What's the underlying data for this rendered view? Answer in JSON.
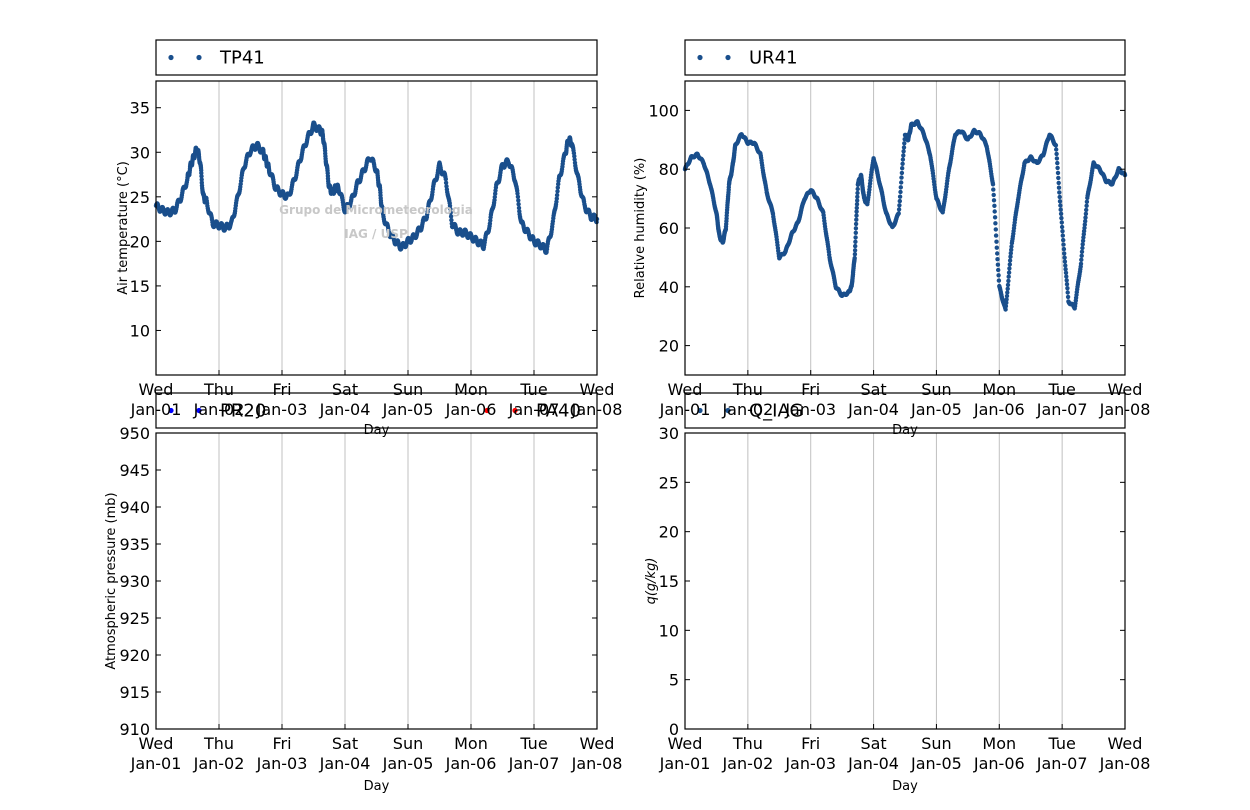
{
  "watermark": {
    "line1": "Grupo de Micrometeorologia",
    "line2": "IAG / USP"
  },
  "colors": {
    "series_blue": "#1a4f8c",
    "pr20": "#0000ff",
    "pa40": "#ff0000",
    "grid": "#c0c0c0"
  },
  "chart_data": [
    {
      "type": "scatter",
      "id": "temp",
      "xlabel": "Day",
      "ylabel": "Air temperature (°C)",
      "xlim": [
        0,
        7
      ],
      "ylim": [
        5,
        38
      ],
      "yticks": [
        10,
        15,
        20,
        25,
        30,
        35
      ],
      "xticks": [
        {
          "x": 0,
          "l1": "Wed",
          "l2": "Jan-01"
        },
        {
          "x": 1,
          "l1": "Thu",
          "l2": "Jan-02"
        },
        {
          "x": 2,
          "l1": "Fri",
          "l2": "Jan-03"
        },
        {
          "x": 3,
          "l1": "Sat",
          "l2": "Jan-04"
        },
        {
          "x": 4,
          "l1": "Sun",
          "l2": "Jan-05"
        },
        {
          "x": 5,
          "l1": "Mon",
          "l2": "Jan-06"
        },
        {
          "x": 6,
          "l1": "Tue",
          "l2": "Jan-07"
        },
        {
          "x": 7,
          "l1": "Wed",
          "l2": "Jan-08"
        }
      ],
      "legend": [
        "TP41"
      ],
      "series": [
        {
          "name": "TP41",
          "color": "#1a4f8c",
          "x": [
            0,
            0.1,
            0.2,
            0.3,
            0.4,
            0.5,
            0.55,
            0.6,
            0.65,
            0.7,
            0.75,
            0.8,
            0.9,
            1.0,
            1.1,
            1.2,
            1.3,
            1.4,
            1.5,
            1.6,
            1.7,
            1.75,
            1.8,
            1.9,
            2.0,
            2.1,
            2.2,
            2.3,
            2.4,
            2.5,
            2.6,
            2.65,
            2.7,
            2.75,
            2.8,
            2.85,
            2.9,
            3.0,
            3.1,
            3.2,
            3.3,
            3.4,
            3.5,
            3.55,
            3.6,
            3.7,
            3.8,
            3.9,
            4.0,
            4.1,
            4.2,
            4.3,
            4.4,
            4.5,
            4.6,
            4.7,
            4.8,
            4.9,
            5.0,
            5.1,
            5.2,
            5.3,
            5.4,
            5.5,
            5.6,
            5.7,
            5.8,
            5.9,
            6.0,
            6.1,
            6.2,
            6.3,
            6.4,
            6.5,
            6.55,
            6.6,
            6.7,
            6.8,
            6.9,
            7.0
          ],
          "y": [
            24,
            23.5,
            23.2,
            23.5,
            25,
            27,
            28.5,
            29.5,
            30.5,
            29,
            25,
            24.5,
            22,
            21.8,
            21.5,
            22,
            25,
            28.5,
            30.2,
            30.8,
            30,
            29,
            28,
            26,
            25.3,
            25,
            27,
            29.5,
            31.5,
            33,
            32.5,
            32,
            29,
            26,
            25.5,
            26,
            26,
            23.5,
            24.5,
            26.5,
            28,
            29.5,
            28,
            26,
            23,
            21,
            20,
            19.3,
            20,
            20.5,
            21.5,
            23,
            26,
            28.5,
            27,
            22,
            21,
            21,
            20.5,
            20,
            19.5,
            22,
            26,
            28.5,
            29,
            27,
            22,
            21,
            20,
            19.6,
            19,
            22,
            27,
            30,
            31.5,
            31,
            27,
            24,
            22.8,
            22.5
          ]
        }
      ]
    },
    {
      "type": "scatter",
      "id": "rh",
      "xlabel": "Day",
      "ylabel": "Relative humidity (%)",
      "xlim": [
        0,
        7
      ],
      "ylim": [
        10,
        110
      ],
      "yticks": [
        20,
        40,
        60,
        80,
        100
      ],
      "xticks": [
        {
          "x": 0,
          "l1": "Wed",
          "l2": "Jan-01"
        },
        {
          "x": 1,
          "l1": "Thu",
          "l2": "Jan-02"
        },
        {
          "x": 2,
          "l1": "Fri",
          "l2": "Jan-03"
        },
        {
          "x": 3,
          "l1": "Sat",
          "l2": "Jan-04"
        },
        {
          "x": 4,
          "l1": "Sun",
          "l2": "Jan-05"
        },
        {
          "x": 5,
          "l1": "Mon",
          "l2": "Jan-06"
        },
        {
          "x": 6,
          "l1": "Tue",
          "l2": "Jan-07"
        },
        {
          "x": 7,
          "l1": "Wed",
          "l2": "Jan-08"
        }
      ],
      "legend": [
        "UR41"
      ],
      "series": [
        {
          "name": "UR41",
          "color": "#1a4f8c",
          "x": [
            0,
            0.1,
            0.2,
            0.3,
            0.4,
            0.5,
            0.55,
            0.6,
            0.65,
            0.7,
            0.75,
            0.8,
            0.9,
            1.0,
            1.1,
            1.2,
            1.3,
            1.4,
            1.5,
            1.6,
            1.7,
            1.8,
            1.9,
            2.0,
            2.1,
            2.2,
            2.3,
            2.4,
            2.5,
            2.6,
            2.65,
            2.7,
            2.75,
            2.8,
            2.85,
            2.9,
            3.0,
            3.1,
            3.2,
            3.3,
            3.4,
            3.5,
            3.55,
            3.6,
            3.7,
            3.8,
            3.9,
            4.0,
            4.1,
            4.2,
            4.3,
            4.4,
            4.5,
            4.6,
            4.7,
            4.8,
            4.9,
            5.0,
            5.1,
            5.2,
            5.3,
            5.4,
            5.5,
            5.6,
            5.7,
            5.8,
            5.9,
            6.0,
            6.1,
            6.2,
            6.3,
            6.4,
            6.5,
            6.6,
            6.7,
            6.8,
            6.9,
            7.0
          ],
          "y": [
            80,
            84,
            85,
            82,
            75,
            65,
            57,
            55,
            60,
            75,
            80,
            88,
            92,
            89,
            89,
            85,
            72,
            65,
            50,
            52,
            58,
            62,
            70,
            73,
            70,
            65,
            50,
            40,
            37,
            38,
            40,
            50,
            75,
            78,
            70,
            68,
            84,
            75,
            65,
            60,
            65,
            92,
            90,
            95,
            96,
            92,
            85,
            70,
            65,
            80,
            92,
            93,
            90,
            93,
            92,
            88,
            75,
            40,
            32,
            55,
            70,
            82,
            84,
            82,
            85,
            92,
            88,
            60,
            35,
            33,
            48,
            70,
            82,
            80,
            76,
            75,
            80,
            78
          ],
          "y_note": ""
        }
      ]
    },
    {
      "type": "scatter",
      "id": "pressure",
      "xlabel": "Day",
      "ylabel": "Atmospheric pressure (mb)",
      "xlim": [
        0,
        7
      ],
      "ylim": [
        910,
        950
      ],
      "yticks": [
        910,
        915,
        920,
        925,
        930,
        935,
        940,
        945,
        950
      ],
      "xticks": [
        {
          "x": 0,
          "l1": "Wed",
          "l2": "Jan-01"
        },
        {
          "x": 1,
          "l1": "Thu",
          "l2": "Jan-02"
        },
        {
          "x": 2,
          "l1": "Fri",
          "l2": "Jan-03"
        },
        {
          "x": 3,
          "l1": "Sat",
          "l2": "Jan-04"
        },
        {
          "x": 4,
          "l1": "Sun",
          "l2": "Jan-05"
        },
        {
          "x": 5,
          "l1": "Mon",
          "l2": "Jan-06"
        },
        {
          "x": 6,
          "l1": "Tue",
          "l2": "Jan-07"
        },
        {
          "x": 7,
          "l1": "Wed",
          "l2": "Jan-08"
        }
      ],
      "legend": [
        "PR20",
        "PA40"
      ],
      "series": [
        {
          "name": "PR20",
          "color": "#0000ff",
          "x": [],
          "y": []
        },
        {
          "name": "PA40",
          "color": "#ff0000",
          "x": [],
          "y": []
        }
      ]
    },
    {
      "type": "scatter",
      "id": "q",
      "xlabel": "Day",
      "ylabel": "q(g/kg)",
      "xlim": [
        0,
        7
      ],
      "ylim": [
        0,
        30
      ],
      "yticks": [
        0,
        5,
        10,
        15,
        20,
        25,
        30
      ],
      "xticks": [
        {
          "x": 0,
          "l1": "Wed",
          "l2": "Jan-01"
        },
        {
          "x": 1,
          "l1": "Thu",
          "l2": "Jan-02"
        },
        {
          "x": 2,
          "l1": "Fri",
          "l2": "Jan-03"
        },
        {
          "x": 3,
          "l1": "Sat",
          "l2": "Jan-04"
        },
        {
          "x": 4,
          "l1": "Sun",
          "l2": "Jan-05"
        },
        {
          "x": 5,
          "l1": "Mon",
          "l2": "Jan-06"
        },
        {
          "x": 6,
          "l1": "Tue",
          "l2": "Jan-07"
        },
        {
          "x": 7,
          "l1": "Wed",
          "l2": "Jan-08"
        }
      ],
      "legend": [
        "Q_IAG"
      ],
      "series": [
        {
          "name": "Q_IAG",
          "color": "#1a4f8c",
          "x": [],
          "y": []
        }
      ]
    }
  ]
}
